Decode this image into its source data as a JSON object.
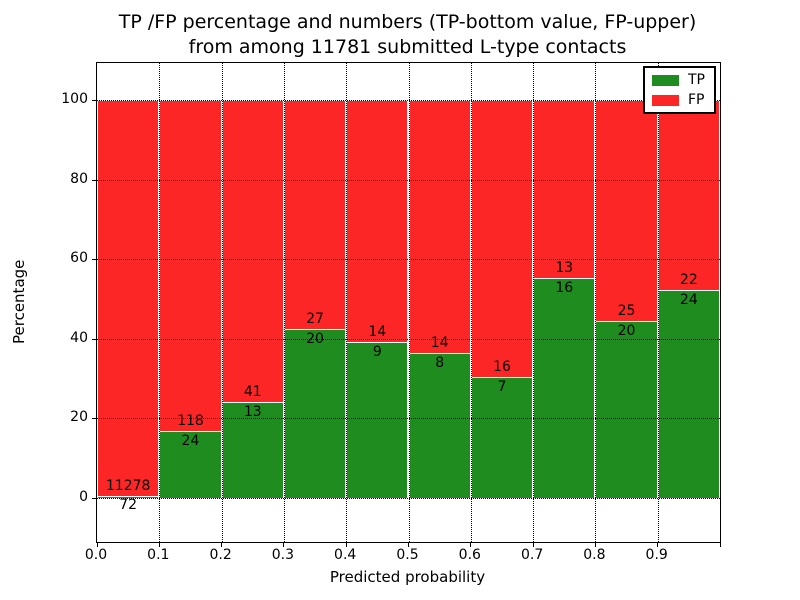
{
  "title": {
    "line1": "TP /FP percentage and numbers (TP-bottom value, FP-upper)",
    "line2": "from among 11781 submitted L-type contacts"
  },
  "colors": {
    "tp": "#1e8c1e",
    "fp": "#fc2626",
    "grid": "#000000",
    "background": "#ffffff"
  },
  "legend": {
    "position": "upper right",
    "items": [
      {
        "label": "TP",
        "color": "#1e8c1e"
      },
      {
        "label": "FP",
        "color": "#fc2626"
      }
    ]
  },
  "chart_data": {
    "type": "bar",
    "stacked": true,
    "normalized_to_percent": true,
    "title": "TP /FP percentage and numbers (TP-bottom value, FP-upper)\nfrom among 11781 submitted L-type contacts",
    "xlabel": "Predicted probability",
    "ylabel": "Percentage",
    "total_contacts": 11781,
    "x_tick_labels": [
      "0.0",
      "0.1",
      "0.2",
      "0.3",
      "0.4",
      "0.5",
      "0.6",
      "0.7",
      "0.8",
      "0.9"
    ],
    "y_ticks": [
      0,
      20,
      40,
      60,
      80,
      100
    ],
    "xlim": [
      0.0,
      1.0
    ],
    "ylim": [
      -11,
      110
    ],
    "grid": true,
    "categories": [
      "0.0-0.1",
      "0.1-0.2",
      "0.2-0.3",
      "0.3-0.4",
      "0.4-0.5",
      "0.5-0.6",
      "0.6-0.7",
      "0.7-0.8",
      "0.8-0.9",
      "0.9-1.0"
    ],
    "series": [
      {
        "name": "TP",
        "counts": [
          72,
          24,
          13,
          20,
          9,
          8,
          7,
          16,
          20,
          24
        ]
      },
      {
        "name": "FP",
        "counts": [
          11278,
          118,
          41,
          27,
          14,
          14,
          16,
          13,
          25,
          22
        ]
      }
    ],
    "bins": [
      {
        "range": "0.0-0.1",
        "tp": 72,
        "fp": 11278,
        "tp_pct": 0.63
      },
      {
        "range": "0.1-0.2",
        "tp": 24,
        "fp": 118,
        "tp_pct": 16.9
      },
      {
        "range": "0.2-0.3",
        "tp": 13,
        "fp": 41,
        "tp_pct": 24.07
      },
      {
        "range": "0.3-0.4",
        "tp": 20,
        "fp": 27,
        "tp_pct": 42.55
      },
      {
        "range": "0.4-0.5",
        "tp": 9,
        "fp": 14,
        "tp_pct": 39.13
      },
      {
        "range": "0.5-0.6",
        "tp": 8,
        "fp": 14,
        "tp_pct": 36.36
      },
      {
        "range": "0.6-0.7",
        "tp": 7,
        "fp": 16,
        "tp_pct": 30.43
      },
      {
        "range": "0.7-0.8",
        "tp": 16,
        "fp": 13,
        "tp_pct": 55.17
      },
      {
        "range": "0.8-0.9",
        "tp": 20,
        "fp": 25,
        "tp_pct": 44.44
      },
      {
        "range": "0.9-1.0",
        "tp": 24,
        "fp": 22,
        "tp_pct": 52.17
      }
    ]
  }
}
